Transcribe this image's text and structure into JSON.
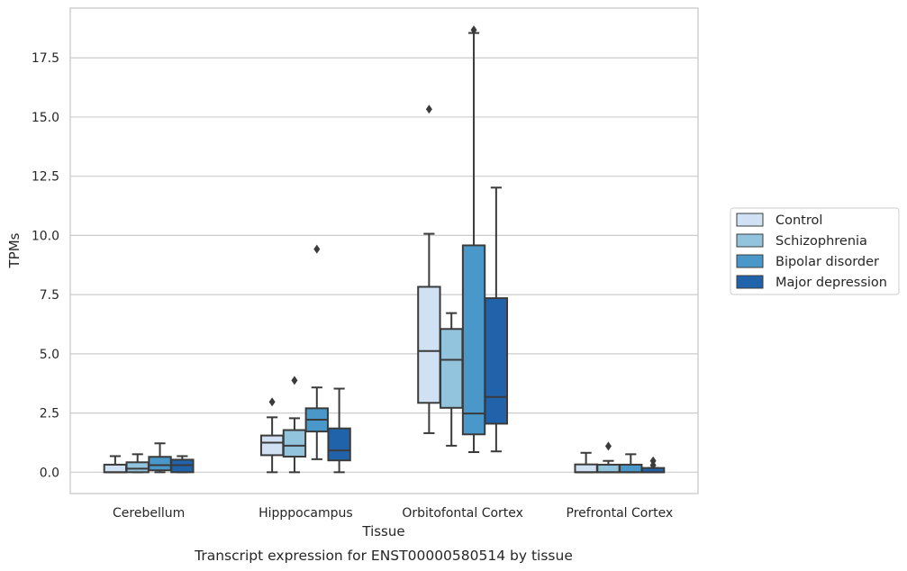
{
  "chart_data": {
    "type": "box",
    "xlabel": "Tissue",
    "ylabel": "TPMs",
    "caption": "Transcript expression for ENST00000580514 by tissue",
    "categories": [
      "Cerebellum",
      "Hipppocampus",
      "Orbitofontal Cortex",
      "Prefrontal Cortex"
    ],
    "ylim": [
      -0.9,
      19.6
    ],
    "yticks": [
      0.0,
      2.5,
      5.0,
      7.5,
      10.0,
      12.5,
      15.0,
      17.5
    ],
    "ytick_labels": [
      "0.0",
      "2.5",
      "5.0",
      "7.5",
      "10.0",
      "12.5",
      "15.0",
      "17.5"
    ],
    "grid": "horizontal",
    "legend_position": "right",
    "series": [
      {
        "name": "Control",
        "color": "#cfe1f2",
        "boxes": [
          {
            "whisker_low": 0.0,
            "q1": 0.0,
            "median": 0.0,
            "q3": 0.32,
            "whisker_high": 0.68,
            "outliers": []
          },
          {
            "whisker_low": 0.0,
            "q1": 0.72,
            "median": 1.25,
            "q3": 1.55,
            "whisker_high": 2.32,
            "outliers": [
              2.97
            ]
          },
          {
            "whisker_low": 1.65,
            "q1": 2.93,
            "median": 5.12,
            "q3": 7.83,
            "whisker_high": 10.07,
            "outliers": [
              15.33
            ]
          },
          {
            "whisker_low": 0.0,
            "q1": 0.0,
            "median": 0.0,
            "q3": 0.33,
            "whisker_high": 0.82,
            "outliers": []
          }
        ]
      },
      {
        "name": "Schizophrenia",
        "color": "#93c4de",
        "boxes": [
          {
            "whisker_low": 0.0,
            "q1": 0.0,
            "median": 0.15,
            "q3": 0.42,
            "whisker_high": 0.76,
            "outliers": []
          },
          {
            "whisker_low": 0.0,
            "q1": 0.66,
            "median": 1.12,
            "q3": 1.78,
            "whisker_high": 2.28,
            "outliers": [
              3.88
            ]
          },
          {
            "whisker_low": 1.12,
            "q1": 2.72,
            "median": 4.75,
            "q3": 6.05,
            "whisker_high": 6.72,
            "outliers": []
          },
          {
            "whisker_low": 0.0,
            "q1": 0.0,
            "median": 0.0,
            "q3": 0.32,
            "whisker_high": 0.48,
            "outliers": [
              1.1
            ]
          }
        ]
      },
      {
        "name": "Bipolar disorder",
        "color": "#4a98c9",
        "boxes": [
          {
            "whisker_low": 0.0,
            "q1": 0.08,
            "median": 0.3,
            "q3": 0.65,
            "whisker_high": 1.22,
            "outliers": []
          },
          {
            "whisker_low": 0.55,
            "q1": 1.72,
            "median": 2.22,
            "q3": 2.7,
            "whisker_high": 3.58,
            "outliers": [
              9.42
            ]
          },
          {
            "whisker_low": 0.85,
            "q1": 1.6,
            "median": 2.48,
            "q3": 9.58,
            "whisker_high": 18.55,
            "outliers": [
              18.68
            ]
          },
          {
            "whisker_low": 0.0,
            "q1": 0.0,
            "median": 0.0,
            "q3": 0.32,
            "whisker_high": 0.76,
            "outliers": []
          }
        ]
      },
      {
        "name": "Major depression",
        "color": "#2163aa",
        "boxes": [
          {
            "whisker_low": 0.0,
            "q1": 0.0,
            "median": 0.3,
            "q3": 0.53,
            "whisker_high": 0.68,
            "outliers": []
          },
          {
            "whisker_low": 0.0,
            "q1": 0.5,
            "median": 0.92,
            "q3": 1.85,
            "whisker_high": 3.53,
            "outliers": []
          },
          {
            "whisker_low": 0.88,
            "q1": 2.05,
            "median": 3.18,
            "q3": 7.35,
            "whisker_high": 12.02,
            "outliers": []
          },
          {
            "whisker_low": 0.0,
            "q1": 0.0,
            "median": 0.0,
            "q3": 0.18,
            "whisker_high": 0.18,
            "outliers": [
              0.48,
              0.3
            ]
          }
        ]
      }
    ]
  }
}
